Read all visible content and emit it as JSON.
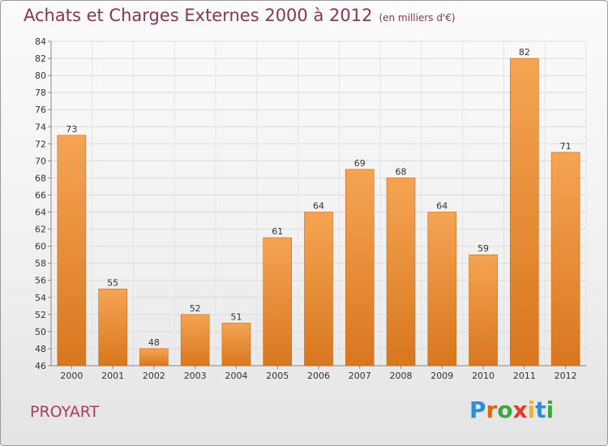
{
  "header": {
    "title": "Achats et Charges Externes 2000 à 2012",
    "subtitle": "(en milliers d'€)"
  },
  "footer": {
    "commune": "PROYART",
    "brand": [
      "P",
      "r",
      "o",
      "x",
      "i",
      "t",
      "i"
    ]
  },
  "colors": {
    "bar_top": "#f5a453",
    "bar_bottom": "#d9771f",
    "title": "#8a3550",
    "brand": [
      "#2e8fd8",
      "#e0641a",
      "#3aa83a",
      "#e43d2f",
      "#f2b51c",
      "#2e8fd8",
      "#3aa83a"
    ]
  },
  "chart_data": {
    "type": "bar",
    "categories": [
      "2000",
      "2001",
      "2002",
      "2003",
      "2004",
      "2005",
      "2006",
      "2007",
      "2008",
      "2009",
      "2010",
      "2011",
      "2012"
    ],
    "values": [
      73,
      55,
      48,
      52,
      51,
      61,
      64,
      69,
      68,
      64,
      59,
      82,
      71
    ],
    "ylim": [
      46,
      84
    ],
    "yticks": [
      46,
      48,
      50,
      52,
      54,
      56,
      58,
      60,
      62,
      64,
      66,
      68,
      70,
      72,
      74,
      76,
      78,
      80,
      82,
      84
    ],
    "grid": true
  }
}
